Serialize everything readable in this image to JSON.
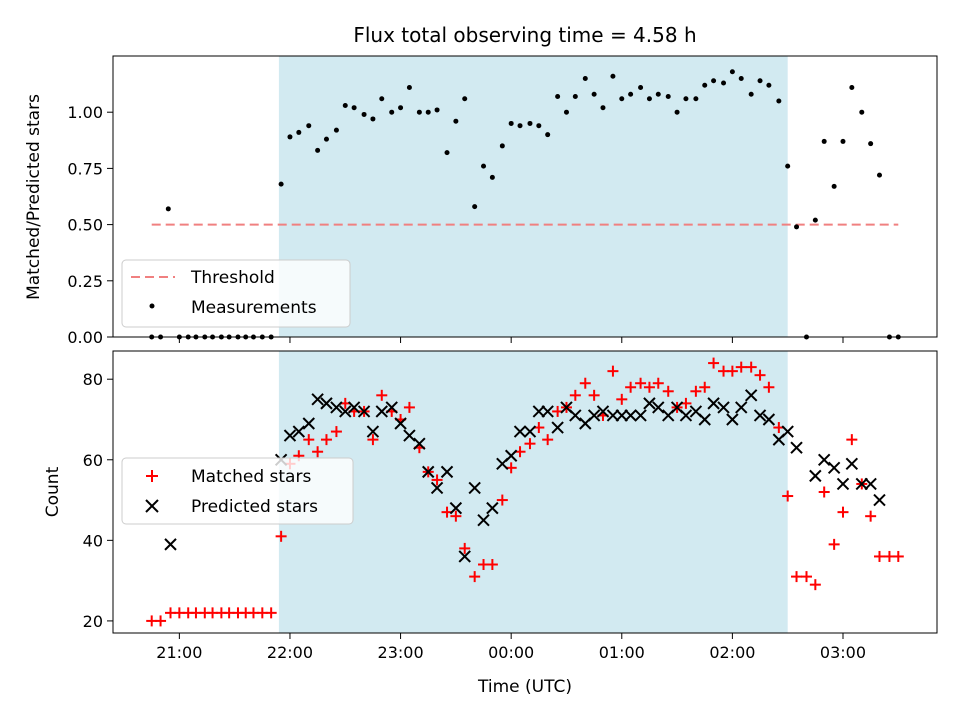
{
  "figure_title": "Flux total observing time = 4.58 h",
  "chart_data": [
    {
      "type": "scatter",
      "title": "Flux total observing time = 4.58 h",
      "xlabel": "",
      "ylabel": "Matched/Predicted stars",
      "x_unit": "hours from 00:00 UTC",
      "xlim": [
        -3.6,
        3.85
      ],
      "ylim": [
        0,
        1.25
      ],
      "yticks": [
        0,
        0.25,
        0.5,
        0.75,
        1.0
      ],
      "ytick_labels": [
        "0.00",
        "0.25",
        "0.50",
        "0.75",
        "1.00"
      ],
      "xticks": [
        -3,
        -2,
        -1,
        0,
        1,
        2,
        3
      ],
      "grid": false,
      "legend_position": "lower-left",
      "shaded_region": {
        "x_start": -2.1,
        "x_end": 2.5,
        "color": "#add8e6"
      },
      "threshold": {
        "name": "Threshold",
        "y": 0.5,
        "x_start": -3.25,
        "x_end": 3.5,
        "color": "#f08080"
      },
      "series": [
        {
          "name": "Measurements",
          "marker": "dot",
          "color": "#000000",
          "points": [
            [
              -3.25,
              0
            ],
            [
              -3.17,
              0
            ],
            [
              -3.1,
              0.57
            ],
            [
              -3.0,
              0
            ],
            [
              -2.92,
              0
            ],
            [
              -2.85,
              0
            ],
            [
              -2.77,
              0
            ],
            [
              -2.7,
              0
            ],
            [
              -2.62,
              0
            ],
            [
              -2.55,
              0
            ],
            [
              -2.47,
              0
            ],
            [
              -2.4,
              0
            ],
            [
              -2.33,
              0
            ],
            [
              -2.25,
              0
            ],
            [
              -2.17,
              0
            ],
            [
              -2.08,
              0.68
            ],
            [
              -2.0,
              0.89
            ],
            [
              -1.92,
              0.91
            ],
            [
              -1.83,
              0.94
            ],
            [
              -1.75,
              0.83
            ],
            [
              -1.67,
              0.88
            ],
            [
              -1.58,
              0.92
            ],
            [
              -1.5,
              1.03
            ],
            [
              -1.42,
              1.02
            ],
            [
              -1.33,
              0.99
            ],
            [
              -1.25,
              0.97
            ],
            [
              -1.17,
              1.06
            ],
            [
              -1.08,
              1.0
            ],
            [
              -1.0,
              1.02
            ],
            [
              -0.92,
              1.11
            ],
            [
              -0.83,
              1.0
            ],
            [
              -0.75,
              1.0
            ],
            [
              -0.67,
              1.01
            ],
            [
              -0.58,
              0.82
            ],
            [
              -0.5,
              0.96
            ],
            [
              -0.42,
              1.06
            ],
            [
              -0.33,
              0.58
            ],
            [
              -0.25,
              0.76
            ],
            [
              -0.17,
              0.71
            ],
            [
              -0.08,
              0.85
            ],
            [
              0.0,
              0.95
            ],
            [
              0.08,
              0.94
            ],
            [
              0.17,
              0.95
            ],
            [
              0.25,
              0.94
            ],
            [
              0.33,
              0.9
            ],
            [
              0.42,
              1.07
            ],
            [
              0.5,
              1.0
            ],
            [
              0.58,
              1.07
            ],
            [
              0.67,
              1.15
            ],
            [
              0.75,
              1.08
            ],
            [
              0.83,
              1.02
            ],
            [
              0.92,
              1.16
            ],
            [
              1.0,
              1.06
            ],
            [
              1.08,
              1.08
            ],
            [
              1.17,
              1.11
            ],
            [
              1.25,
              1.06
            ],
            [
              1.33,
              1.08
            ],
            [
              1.42,
              1.07
            ],
            [
              1.5,
              1.0
            ],
            [
              1.58,
              1.06
            ],
            [
              1.67,
              1.06
            ],
            [
              1.75,
              1.12
            ],
            [
              1.83,
              1.14
            ],
            [
              1.92,
              1.13
            ],
            [
              2.0,
              1.18
            ],
            [
              2.08,
              1.15
            ],
            [
              2.17,
              1.08
            ],
            [
              2.25,
              1.14
            ],
            [
              2.33,
              1.12
            ],
            [
              2.42,
              1.05
            ],
            [
              2.5,
              0.76
            ],
            [
              2.58,
              0.49
            ],
            [
              2.67,
              0
            ],
            [
              2.75,
              0.52
            ],
            [
              2.83,
              0.87
            ],
            [
              2.92,
              0.67
            ],
            [
              3.0,
              0.87
            ],
            [
              3.08,
              1.11
            ],
            [
              3.17,
              1.0
            ],
            [
              3.25,
              0.86
            ],
            [
              3.33,
              0.72
            ],
            [
              3.42,
              0
            ],
            [
              3.5,
              0
            ]
          ]
        }
      ]
    },
    {
      "type": "scatter",
      "title": "",
      "xlabel": "Time (UTC)",
      "ylabel": "Count",
      "x_unit": "hours from 00:00 UTC",
      "xlim": [
        -3.6,
        3.85
      ],
      "ylim": [
        17,
        87
      ],
      "yticks": [
        20,
        40,
        60,
        80
      ],
      "ytick_labels": [
        "20",
        "40",
        "60",
        "80"
      ],
      "xticks": [
        -3,
        -2,
        -1,
        0,
        1,
        2,
        3
      ],
      "xtick_labels": [
        "21:00",
        "22:00",
        "23:00",
        "00:00",
        "01:00",
        "02:00",
        "03:00"
      ],
      "grid": false,
      "legend_position": "center-left",
      "shaded_region": {
        "x_start": -2.1,
        "x_end": 2.5,
        "color": "#add8e6"
      },
      "series": [
        {
          "name": "Matched stars",
          "marker": "plus",
          "color": "#ff0000",
          "points": [
            [
              -3.25,
              20
            ],
            [
              -3.17,
              20
            ],
            [
              -3.08,
              22
            ],
            [
              -3.0,
              22
            ],
            [
              -2.92,
              22
            ],
            [
              -2.85,
              22
            ],
            [
              -2.77,
              22
            ],
            [
              -2.7,
              22
            ],
            [
              -2.62,
              22
            ],
            [
              -2.55,
              22
            ],
            [
              -2.47,
              22
            ],
            [
              -2.4,
              22
            ],
            [
              -2.33,
              22
            ],
            [
              -2.25,
              22
            ],
            [
              -2.17,
              22
            ],
            [
              -2.08,
              41
            ],
            [
              -2.0,
              59
            ],
            [
              -1.92,
              61
            ],
            [
              -1.83,
              65
            ],
            [
              -1.75,
              62
            ],
            [
              -1.67,
              65
            ],
            [
              -1.58,
              67
            ],
            [
              -1.5,
              74
            ],
            [
              -1.42,
              72
            ],
            [
              -1.33,
              72
            ],
            [
              -1.25,
              65
            ],
            [
              -1.17,
              76
            ],
            [
              -1.08,
              72
            ],
            [
              -1.0,
              70
            ],
            [
              -0.92,
              73
            ],
            [
              -0.83,
              63
            ],
            [
              -0.75,
              57
            ],
            [
              -0.67,
              55
            ],
            [
              -0.58,
              47
            ],
            [
              -0.5,
              46
            ],
            [
              -0.42,
              38
            ],
            [
              -0.33,
              31
            ],
            [
              -0.25,
              34
            ],
            [
              -0.17,
              34
            ],
            [
              -0.08,
              50
            ],
            [
              0.0,
              58
            ],
            [
              0.08,
              62
            ],
            [
              0.17,
              64
            ],
            [
              0.25,
              68
            ],
            [
              0.33,
              65
            ],
            [
              0.42,
              72
            ],
            [
              0.5,
              73
            ],
            [
              0.58,
              76
            ],
            [
              0.67,
              79
            ],
            [
              0.75,
              76
            ],
            [
              0.83,
              71
            ],
            [
              0.92,
              82
            ],
            [
              1.0,
              75
            ],
            [
              1.08,
              78
            ],
            [
              1.17,
              79
            ],
            [
              1.25,
              78
            ],
            [
              1.33,
              79
            ],
            [
              1.42,
              77
            ],
            [
              1.5,
              73
            ],
            [
              1.58,
              74
            ],
            [
              1.67,
              77
            ],
            [
              1.75,
              78
            ],
            [
              1.83,
              84
            ],
            [
              1.92,
              82
            ],
            [
              2.0,
              82
            ],
            [
              2.08,
              83
            ],
            [
              2.17,
              83
            ],
            [
              2.25,
              81
            ],
            [
              2.33,
              78
            ],
            [
              2.42,
              68
            ],
            [
              2.5,
              51
            ],
            [
              2.58,
              31
            ],
            [
              2.67,
              31
            ],
            [
              2.75,
              29
            ],
            [
              2.83,
              52
            ],
            [
              2.92,
              39
            ],
            [
              3.0,
              47
            ],
            [
              3.08,
              65
            ],
            [
              3.17,
              54
            ],
            [
              3.25,
              46
            ],
            [
              3.33,
              36
            ],
            [
              3.42,
              36
            ],
            [
              3.5,
              36
            ]
          ]
        },
        {
          "name": "Predicted stars",
          "marker": "x",
          "color": "#000000",
          "points": [
            [
              -3.08,
              39
            ],
            [
              -2.08,
              60
            ],
            [
              -2.0,
              66
            ],
            [
              -1.92,
              67
            ],
            [
              -1.83,
              69
            ],
            [
              -1.75,
              75
            ],
            [
              -1.67,
              74
            ],
            [
              -1.58,
              73
            ],
            [
              -1.5,
              72
            ],
            [
              -1.42,
              73
            ],
            [
              -1.33,
              72
            ],
            [
              -1.25,
              67
            ],
            [
              -1.17,
              72
            ],
            [
              -1.08,
              73
            ],
            [
              -1.0,
              69
            ],
            [
              -0.92,
              66
            ],
            [
              -0.83,
              64
            ],
            [
              -0.75,
              57
            ],
            [
              -0.67,
              53
            ],
            [
              -0.58,
              57
            ],
            [
              -0.5,
              48
            ],
            [
              -0.42,
              36
            ],
            [
              -0.33,
              53
            ],
            [
              -0.25,
              45
            ],
            [
              -0.17,
              48
            ],
            [
              -0.08,
              59
            ],
            [
              0.0,
              61
            ],
            [
              0.08,
              67
            ],
            [
              0.17,
              67
            ],
            [
              0.25,
              72
            ],
            [
              0.33,
              72
            ],
            [
              0.42,
              68
            ],
            [
              0.5,
              73
            ],
            [
              0.58,
              71
            ],
            [
              0.67,
              69
            ],
            [
              0.75,
              71
            ],
            [
              0.83,
              72
            ],
            [
              0.92,
              71
            ],
            [
              1.0,
              71
            ],
            [
              1.08,
              71
            ],
            [
              1.17,
              71
            ],
            [
              1.25,
              74
            ],
            [
              1.33,
              73
            ],
            [
              1.42,
              71
            ],
            [
              1.5,
              73
            ],
            [
              1.58,
              71
            ],
            [
              1.67,
              72
            ],
            [
              1.75,
              70
            ],
            [
              1.83,
              74
            ],
            [
              1.92,
              73
            ],
            [
              2.0,
              70
            ],
            [
              2.08,
              73
            ],
            [
              2.17,
              76
            ],
            [
              2.25,
              71
            ],
            [
              2.33,
              70
            ],
            [
              2.42,
              65
            ],
            [
              2.5,
              67
            ],
            [
              2.58,
              63
            ],
            [
              2.75,
              56
            ],
            [
              2.83,
              60
            ],
            [
              2.92,
              58
            ],
            [
              3.0,
              54
            ],
            [
              3.08,
              59
            ],
            [
              3.17,
              54
            ],
            [
              3.25,
              54
            ],
            [
              3.33,
              50
            ]
          ]
        }
      ]
    }
  ]
}
